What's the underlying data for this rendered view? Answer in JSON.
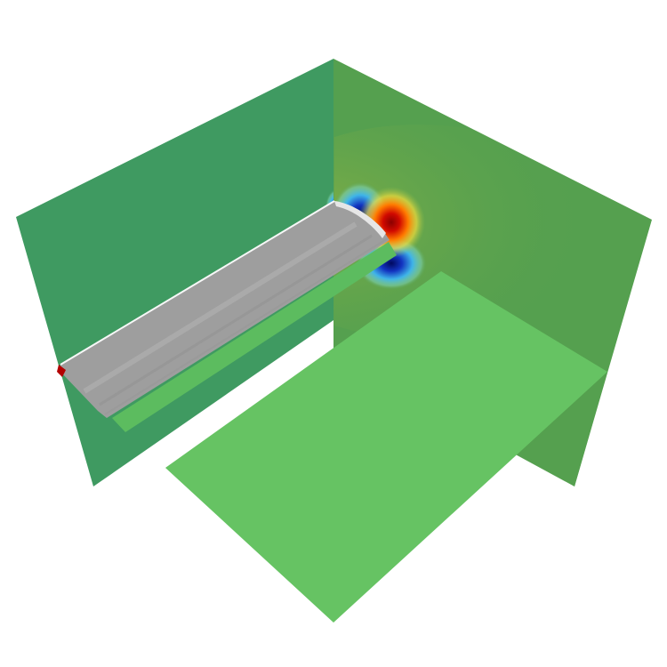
{
  "scene": {
    "description_free": true,
    "colors": {
      "background": "#ffffff",
      "left_wall": "#3f9a61",
      "right_wall": "#55a04f",
      "floor_plane": "#66c363",
      "floor_strip": "#5cbc5f",
      "rod_light": "#f2f2f2",
      "rod_mid": "#cfcfcf",
      "rod_dark": "#9a9a9a",
      "field_red": "#b30000",
      "field_orange": "#ff8a00",
      "field_yellow": "#f2e23a",
      "field_cyan": "#45c6e6",
      "field_blue": "#0d2fb8",
      "field_navy": "#001070"
    }
  }
}
